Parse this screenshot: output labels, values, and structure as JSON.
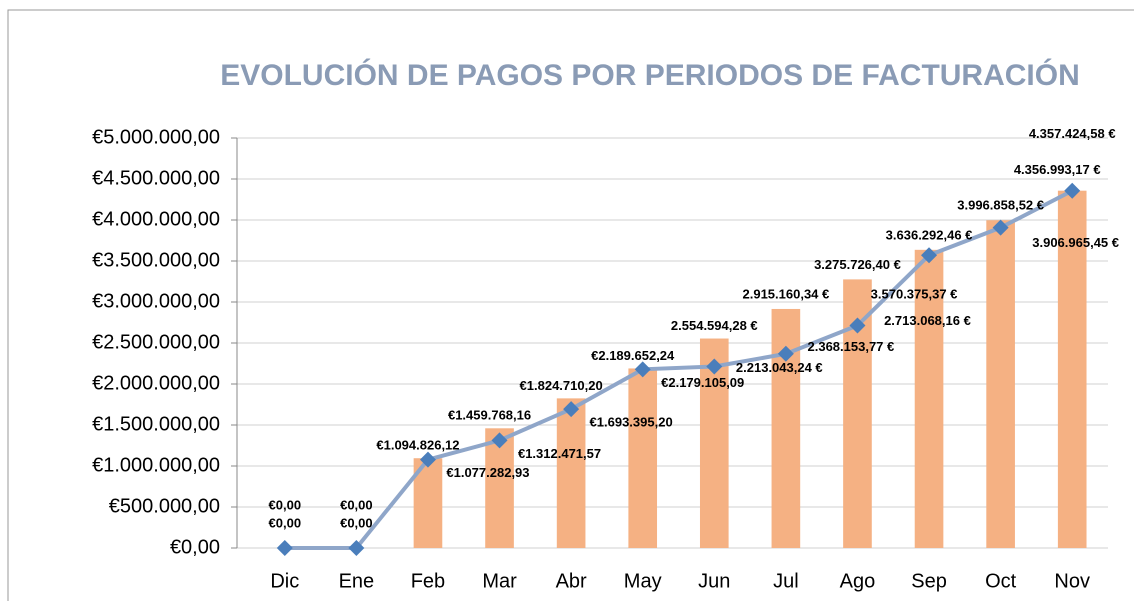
{
  "chart_data": {
    "type": "bar-line",
    "title": "EVOLUCIÓN DE PAGOS POR PERIODOS DE FACTURACIÓN",
    "categories": [
      "Dic",
      "Ene",
      "Feb",
      "Mar",
      "Abr",
      "May",
      "Jun",
      "Jul",
      "Ago",
      "Sep",
      "Oct",
      "Nov"
    ],
    "series": [
      {
        "type": "bar",
        "color": "#f5b183",
        "values": [
          0,
          0,
          1094826.12,
          1459768.16,
          1824710.2,
          2189652.24,
          2554594.28,
          2915160.34,
          3275726.4,
          3636292.46,
          3996858.52,
          4357424.58
        ],
        "value_labels": [
          "€0,00",
          "€0,00",
          "€1.094.826,12",
          "€1.459.768,16",
          "€1.824.710,20",
          "€2.189.652,24",
          "2.554.594,28 €",
          "2.915.160,34 €",
          "3.275.726,40 €",
          "3.636.292,46 €",
          "3.996.858,52 €",
          "4.357.424,58 €"
        ]
      },
      {
        "type": "line",
        "color": "#8fa6c9",
        "marker_color": "#4a7ebb",
        "values": [
          0,
          0,
          1077282.93,
          1312471.57,
          1693395.2,
          2179105.09,
          2213043.24,
          2368153.77,
          2713068.16,
          3570375.37,
          3906965.45,
          4356993.17
        ],
        "value_labels": [
          "€0,00",
          "€0,00",
          "€1.077.282,93",
          "€1.312.471,57",
          "€1.693.395,20",
          "€2.179.105,09",
          "2.213.043,24 €",
          "2.368.153,77 €",
          "2.713.068,16 €",
          "3.570.375,37 €",
          "3.906.965,45 €",
          "4.356.993,17 €"
        ]
      }
    ],
    "ylim": [
      0,
      5000000
    ],
    "yticks": [
      {
        "value": 0,
        "label": "€0,00"
      },
      {
        "value": 500000,
        "label": "€500.000,00"
      },
      {
        "value": 1000000,
        "label": "€1.000.000,00"
      },
      {
        "value": 1500000,
        "label": "€1.500.000,00"
      },
      {
        "value": 2000000,
        "label": "€2.000.000,00"
      },
      {
        "value": 2500000,
        "label": "€2.500.000,00"
      },
      {
        "value": 3000000,
        "label": "€3.000.000,00"
      },
      {
        "value": 3500000,
        "label": "€3.500.000,00"
      },
      {
        "value": 4000000,
        "label": "€4.000.000,00"
      },
      {
        "value": 4500000,
        "label": "€4.500.000,00"
      },
      {
        "value": 5000000,
        "label": "€5.000.000,00"
      }
    ],
    "grid": true
  }
}
